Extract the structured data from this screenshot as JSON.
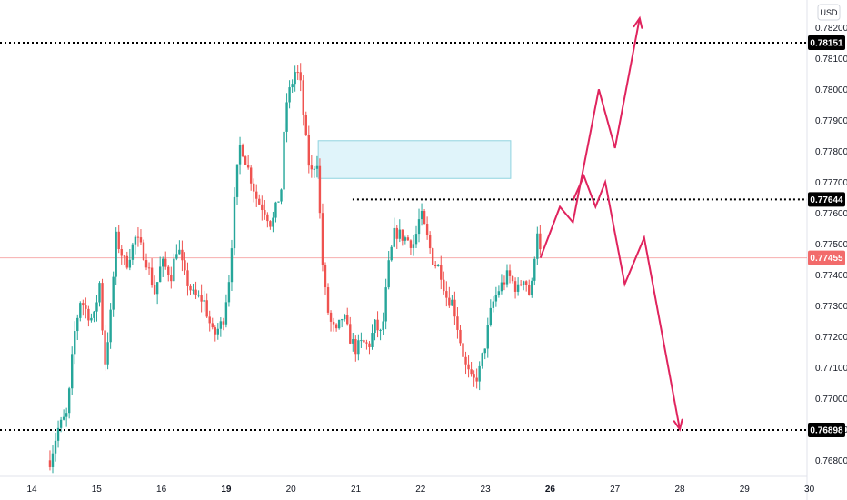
{
  "chart_data": {
    "type": "candlestick",
    "currency": "USD",
    "ylim": [
      0.7675,
      0.7825
    ],
    "xlim": [
      14.0,
      30.0
    ],
    "y_ticks": [
      "0.76800",
      "0.76900",
      "0.77000",
      "0.77100",
      "0.77200",
      "0.77300",
      "0.77400",
      "0.77500",
      "0.77600",
      "0.77700",
      "0.77800",
      "0.77900",
      "0.78000",
      "0.78100",
      "0.78200"
    ],
    "x_ticks": [
      {
        "value": 14,
        "label": "14",
        "bold": false
      },
      {
        "value": 15,
        "label": "15",
        "bold": false
      },
      {
        "value": 16,
        "label": "16",
        "bold": false
      },
      {
        "value": 17,
        "label": "19",
        "bold": true
      },
      {
        "value": 18,
        "label": "20",
        "bold": false
      },
      {
        "value": 19,
        "label": "21",
        "bold": false
      },
      {
        "value": 20,
        "label": "22",
        "bold": false
      },
      {
        "value": 21,
        "label": "23",
        "bold": false
      },
      {
        "value": 22,
        "label": "26",
        "bold": true
      },
      {
        "value": 23,
        "label": "27",
        "bold": false
      },
      {
        "value": 24,
        "label": "28",
        "bold": false
      },
      {
        "value": 25,
        "label": "29",
        "bold": false
      },
      {
        "value": 26,
        "label": "30",
        "bold": false
      }
    ],
    "waypoints": [
      [
        14.28,
        0.768
      ],
      [
        14.4,
        0.769
      ],
      [
        14.55,
        0.7695
      ],
      [
        14.65,
        0.772
      ],
      [
        14.75,
        0.7732
      ],
      [
        14.85,
        0.7728
      ],
      [
        14.95,
        0.7725
      ],
      [
        15.05,
        0.7738
      ],
      [
        15.12,
        0.771
      ],
      [
        15.22,
        0.7728
      ],
      [
        15.3,
        0.7752
      ],
      [
        15.45,
        0.7743
      ],
      [
        15.6,
        0.7752
      ],
      [
        15.75,
        0.7746
      ],
      [
        15.9,
        0.7734
      ],
      [
        16.0,
        0.7744
      ],
      [
        16.15,
        0.774
      ],
      [
        16.25,
        0.775
      ],
      [
        16.35,
        0.774
      ],
      [
        16.5,
        0.7733
      ],
      [
        16.65,
        0.7732
      ],
      [
        16.8,
        0.772
      ],
      [
        16.95,
        0.7725
      ],
      [
        17.05,
        0.774
      ],
      [
        17.15,
        0.777
      ],
      [
        17.22,
        0.7783
      ],
      [
        17.3,
        0.7777
      ],
      [
        17.4,
        0.777
      ],
      [
        17.48,
        0.7764
      ],
      [
        17.6,
        0.7761
      ],
      [
        17.7,
        0.7756
      ],
      [
        17.85,
        0.7768
      ],
      [
        17.92,
        0.7795
      ],
      [
        18.0,
        0.7801
      ],
      [
        18.08,
        0.7807
      ],
      [
        18.15,
        0.7801
      ],
      [
        18.22,
        0.7785
      ],
      [
        18.3,
        0.7772
      ],
      [
        18.4,
        0.7778
      ],
      [
        18.48,
        0.7745
      ],
      [
        18.55,
        0.773
      ],
      [
        18.62,
        0.7724
      ],
      [
        18.7,
        0.7721
      ],
      [
        18.8,
        0.7727
      ],
      [
        18.9,
        0.772
      ],
      [
        19.0,
        0.7716
      ],
      [
        19.1,
        0.7718
      ],
      [
        19.2,
        0.7717
      ],
      [
        19.3,
        0.7724
      ],
      [
        19.4,
        0.772
      ],
      [
        19.5,
        0.7742
      ],
      [
        19.6,
        0.7754
      ],
      [
        19.75,
        0.7752
      ],
      [
        19.9,
        0.775
      ],
      [
        20.0,
        0.776
      ],
      [
        20.1,
        0.7752
      ],
      [
        20.2,
        0.7744
      ],
      [
        20.3,
        0.7742
      ],
      [
        20.4,
        0.7733
      ],
      [
        20.5,
        0.7731
      ],
      [
        20.6,
        0.772
      ],
      [
        20.7,
        0.771
      ],
      [
        20.8,
        0.7705
      ],
      [
        20.9,
        0.7708
      ],
      [
        21.0,
        0.7718
      ],
      [
        21.1,
        0.773
      ],
      [
        21.2,
        0.7735
      ],
      [
        21.35,
        0.774
      ],
      [
        21.5,
        0.7735
      ],
      [
        21.6,
        0.774
      ],
      [
        21.7,
        0.7732
      ],
      [
        21.75,
        0.7745
      ],
      [
        21.82,
        0.7758
      ],
      [
        21.85,
        0.7745
      ]
    ],
    "marked_levels": [
      {
        "label": "0.78151",
        "value": 0.78151,
        "from_x": 14.0
      },
      {
        "label": "0.77644",
        "value": 0.77644,
        "from_x": 18.95
      },
      {
        "label": "0.76898",
        "value": 0.76898,
        "from_x": 14.0
      }
    ],
    "current_price": {
      "label": "0.77455",
      "value": 0.77455
    },
    "zone": {
      "x_range": [
        18.42,
        21.39
      ],
      "y_range": [
        0.77712,
        0.77834
      ]
    },
    "forecast_up": [
      [
        21.85,
        0.77455
      ],
      [
        22.15,
        0.7762
      ],
      [
        22.35,
        0.7757
      ],
      [
        22.75,
        0.78
      ],
      [
        23.0,
        0.7781
      ],
      [
        23.38,
        0.7823
      ]
    ],
    "forecast_down": [
      [
        22.35,
        0.7764
      ],
      [
        22.52,
        0.7772
      ],
      [
        22.7,
        0.7762
      ],
      [
        22.85,
        0.777
      ],
      [
        23.15,
        0.7737
      ],
      [
        23.45,
        0.7752
      ],
      [
        24.0,
        0.769
      ]
    ],
    "colors": {
      "up": "#26a69a",
      "down": "#ef5350",
      "forecast": "#e0245e",
      "zone_fill": "#e0f4fa",
      "zone_stroke": "#8fd3df",
      "current": "#f26b6b",
      "badge": "#000000"
    }
  }
}
